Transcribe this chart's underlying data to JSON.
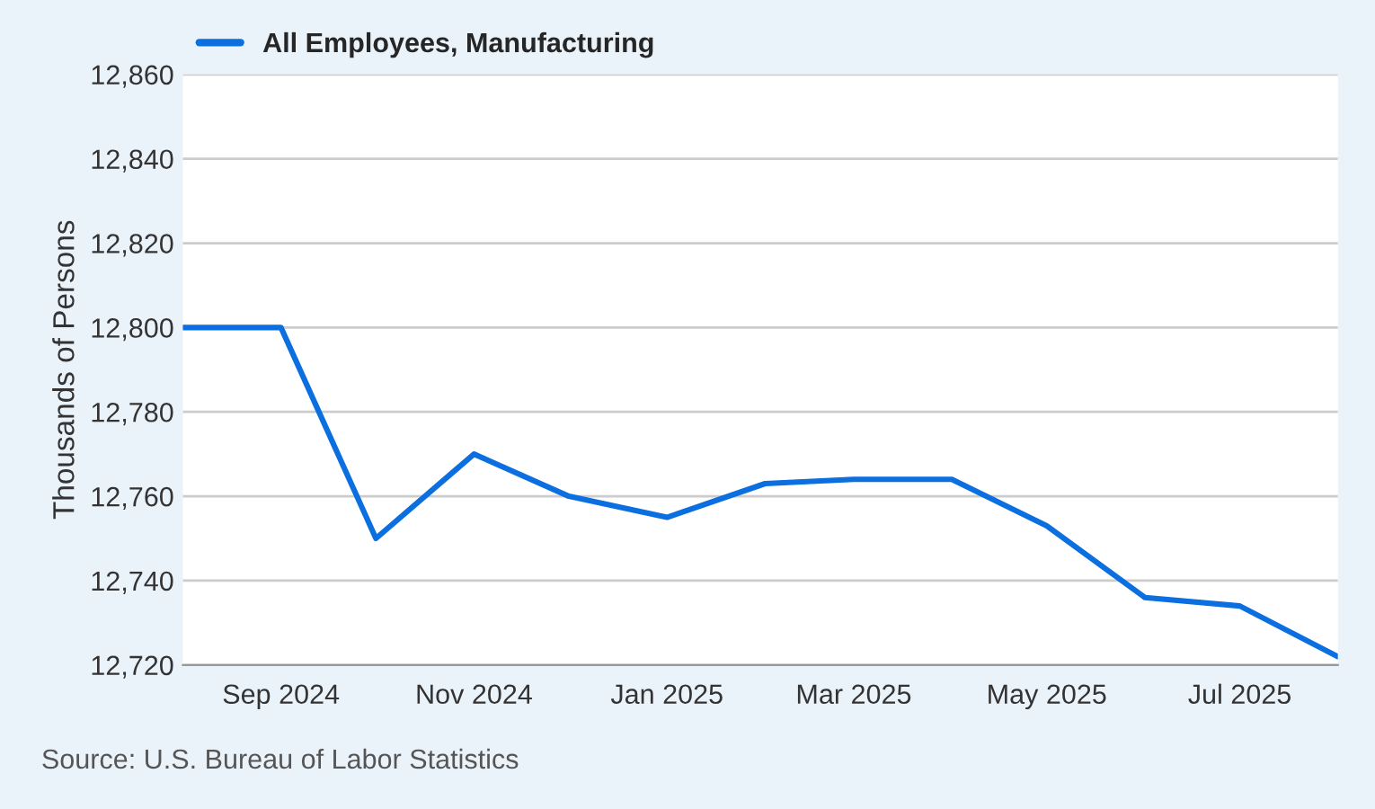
{
  "chart_data": {
    "type": "line",
    "ylabel": "Thousands of Persons",
    "x": [
      "2024-08-01",
      "2024-09-01",
      "2024-10-01",
      "2024-11-01",
      "2024-12-01",
      "2025-01-01",
      "2025-02-01",
      "2025-03-01",
      "2025-04-01",
      "2025-05-01",
      "2025-06-01",
      "2025-07-01",
      "2025-08-01"
    ],
    "series": [
      {
        "name": "All Employees, Manufacturing",
        "color": "#0b6fdf",
        "values": [
          12800,
          12800,
          12750,
          12770,
          12760,
          12755,
          12763,
          12764,
          12764,
          12753,
          12736,
          12734,
          12722
        ]
      }
    ],
    "xlim": [
      "2024-08-01",
      "2025-08-01"
    ],
    "xticks": [
      {
        "value": "2024-09-01",
        "label": "Sep 2024"
      },
      {
        "value": "2024-11-01",
        "label": "Nov 2024"
      },
      {
        "value": "2025-01-01",
        "label": "Jan 2025"
      },
      {
        "value": "2025-03-01",
        "label": "Mar 2025"
      },
      {
        "value": "2025-05-01",
        "label": "May 2025"
      },
      {
        "value": "2025-07-01",
        "label": "Jul 2025"
      }
    ],
    "ylim": [
      12720,
      12860
    ],
    "yticks": [
      {
        "value": 12720,
        "label": "12,720"
      },
      {
        "value": 12740,
        "label": "12,740"
      },
      {
        "value": 12760,
        "label": "12,760"
      },
      {
        "value": 12780,
        "label": "12,780"
      },
      {
        "value": 12800,
        "label": "12,800"
      },
      {
        "value": 12820,
        "label": "12,820"
      },
      {
        "value": 12840,
        "label": "12,840"
      },
      {
        "value": 12860,
        "label": "12,860"
      }
    ],
    "grid": "y",
    "legend": "top left",
    "marker": "none",
    "line_style": "solid",
    "annotations": [
      "Source: U.S. Bureau of Labor Statistics"
    ]
  }
}
